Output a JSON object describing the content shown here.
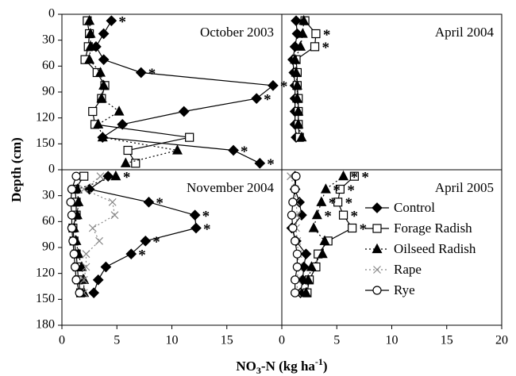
{
  "axis_labels": {
    "y": "Depth (cm)",
    "x": [
      "NO",
      "3",
      "-N (kg ha",
      "-1",
      ")"
    ]
  },
  "chart_data": [
    {
      "type": "line",
      "title": "October 2003",
      "invert_y": true,
      "xlim": [
        0,
        20
      ],
      "ylim": [
        0,
        180
      ],
      "yticks": [
        0,
        30,
        60,
        90,
        120,
        150
      ],
      "y": [
        7.5,
        22.5,
        37.5,
        52.5,
        67.5,
        82.5,
        97.5,
        112.5,
        127.5,
        142.5,
        157.5,
        172.5
      ],
      "series": [
        {
          "name": "Control",
          "color": "#000000",
          "marker": "diamond",
          "linestyle": "solid",
          "values": [
            4.5,
            3.8,
            3.1,
            3.8,
            7.2,
            19.2,
            17.7,
            11.1,
            5.5,
            3.7,
            15.6,
            18.0
          ],
          "annotations": [
            "*",
            null,
            null,
            null,
            "*",
            "*",
            "*",
            null,
            null,
            null,
            "*",
            "*"
          ]
        },
        {
          "name": "Forage Radish",
          "color": "#000000",
          "marker": "square",
          "linestyle": "solid",
          "values": [
            2.3,
            2.5,
            2.4,
            2.1,
            3.2,
            3.9,
            3.6,
            2.8,
            3.0,
            11.6,
            6.0,
            6.7
          ]
        },
        {
          "name": "Oilseed Radish",
          "color": "#000000",
          "marker": "triangle",
          "linestyle": "dotted",
          "values": [
            2.5,
            2.6,
            2.6,
            2.5,
            3.5,
            3.8,
            3.6,
            5.2,
            3.3,
            3.7,
            10.5,
            5.8
          ]
        }
      ]
    },
    {
      "type": "line",
      "title": "April 2004",
      "invert_y": true,
      "xlim": [
        0,
        20
      ],
      "ylim": [
        0,
        180
      ],
      "y": [
        7.5,
        22.5,
        37.5,
        52.5,
        67.5,
        82.5,
        97.5,
        112.5,
        127.5,
        142.5
      ],
      "series": [
        {
          "name": "Control",
          "color": "#000000",
          "marker": "diamond",
          "linestyle": "solid",
          "values": [
            1.3,
            1.4,
            1.2,
            1.0,
            1.1,
            1.2,
            1.2,
            1.2,
            1.2,
            1.3
          ]
        },
        {
          "name": "Forage Radish",
          "color": "#000000",
          "marker": "square",
          "linestyle": "solid",
          "values": [
            2.1,
            3.1,
            3.0,
            1.3,
            1.4,
            1.4,
            1.5,
            1.5,
            1.5,
            1.6
          ],
          "annotations": [
            null,
            "*",
            "*",
            null,
            null,
            null,
            null,
            null,
            null,
            null
          ]
        },
        {
          "name": "Oilseed Radish",
          "color": "#000000",
          "marker": "triangle",
          "linestyle": "dotted",
          "values": [
            2.0,
            1.9,
            1.7,
            1.2,
            1.3,
            1.4,
            1.4,
            1.5,
            1.5,
            1.8
          ]
        }
      ]
    },
    {
      "type": "line",
      "title": "November 2004",
      "invert_y": true,
      "xlim": [
        0,
        20
      ],
      "ylim": [
        0,
        180
      ],
      "xticks": [
        0,
        5,
        10,
        15
      ],
      "yticks": [
        0,
        30,
        60,
        90,
        120,
        150,
        180
      ],
      "y": [
        7.5,
        22.5,
        37.5,
        52.5,
        67.5,
        82.5,
        97.5,
        112.5,
        127.5,
        142.5
      ],
      "series": [
        {
          "name": "Control",
          "color": "#000000",
          "marker": "diamond",
          "linestyle": "solid",
          "values": [
            4.2,
            2.5,
            7.9,
            12.1,
            12.2,
            7.6,
            6.3,
            4.0,
            3.3,
            2.9
          ],
          "annotations": [
            null,
            null,
            "*",
            "*",
            "*",
            "*",
            "*",
            null,
            null,
            null
          ]
        },
        {
          "name": "Forage Radish",
          "color": "#000000",
          "marker": "square",
          "linestyle": "solid",
          "values": [
            2.0,
            1.2,
            1.3,
            1.3,
            1.0,
            1.1,
            1.3,
            1.4,
            1.5,
            1.7
          ]
        },
        {
          "name": "Oilseed Radish",
          "color": "#000000",
          "marker": "triangle",
          "linestyle": "dotted",
          "values": [
            4.9,
            1.4,
            1.5,
            1.4,
            1.1,
            1.3,
            1.5,
            1.8,
            2.0,
            2.0
          ],
          "annotations": [
            "*",
            null,
            null,
            null,
            null,
            null,
            null,
            null,
            null,
            null
          ]
        },
        {
          "name": "Rape",
          "color": "#888888",
          "marker": "x",
          "linestyle": "dotted",
          "values": [
            3.5,
            2.0,
            4.6,
            4.8,
            2.8,
            3.4,
            2.2,
            2.2,
            2.0,
            2.0
          ]
        },
        {
          "name": "Rye",
          "color": "#000000",
          "marker": "circle",
          "linestyle": "solid",
          "values": [
            1.3,
            0.9,
            0.8,
            0.9,
            0.9,
            1.0,
            1.1,
            1.2,
            1.3,
            1.6
          ]
        }
      ]
    },
    {
      "type": "line",
      "title": "April 2005",
      "invert_y": true,
      "xlim": [
        0,
        20
      ],
      "ylim": [
        0,
        180
      ],
      "xticks": [
        0,
        5,
        10,
        15,
        20
      ],
      "legend": "center-right",
      "y": [
        7.5,
        22.5,
        37.5,
        52.5,
        67.5,
        82.5,
        97.5,
        112.5,
        127.5,
        142.5
      ],
      "series": [
        {
          "name": "Control",
          "color": "#000000",
          "marker": "diamond",
          "linestyle": "solid",
          "values": [
            1.2,
            1.2,
            1.6,
            1.8,
            0.9,
            1.3,
            2.2,
            2.0,
            1.9,
            1.7
          ]
        },
        {
          "name": "Forage Radish",
          "color": "#000000",
          "marker": "square",
          "linestyle": "solid",
          "values": [
            6.6,
            5.3,
            5.1,
            5.6,
            6.4,
            4.2,
            3.3,
            3.1,
            2.5,
            2.3
          ],
          "annotations": [
            "*",
            "*",
            "*",
            "*",
            "*",
            null,
            null,
            null,
            null,
            null
          ]
        },
        {
          "name": "Oilseed Radish",
          "color": "#000000",
          "marker": "triangle",
          "linestyle": "dotted",
          "values": [
            5.6,
            4.0,
            3.6,
            3.2,
            2.9,
            3.9,
            3.7,
            2.7,
            2.4,
            2.2
          ],
          "annotations": [
            "*",
            "*",
            "*",
            "*",
            null,
            null,
            null,
            null,
            null,
            null
          ]
        },
        {
          "name": "Rape",
          "color": "#888888",
          "marker": "x",
          "linestyle": "dotted",
          "values": [
            0.8,
            1.2,
            1.3,
            1.4,
            1.3,
            1.4,
            1.5,
            1.5,
            1.4,
            1.4
          ]
        },
        {
          "name": "Rye",
          "color": "#000000",
          "marker": "circle",
          "linestyle": "solid",
          "values": [
            1.3,
            1.2,
            1.0,
            0.9,
            1.0,
            1.2,
            1.4,
            1.4,
            1.2,
            1.2
          ]
        }
      ]
    }
  ]
}
